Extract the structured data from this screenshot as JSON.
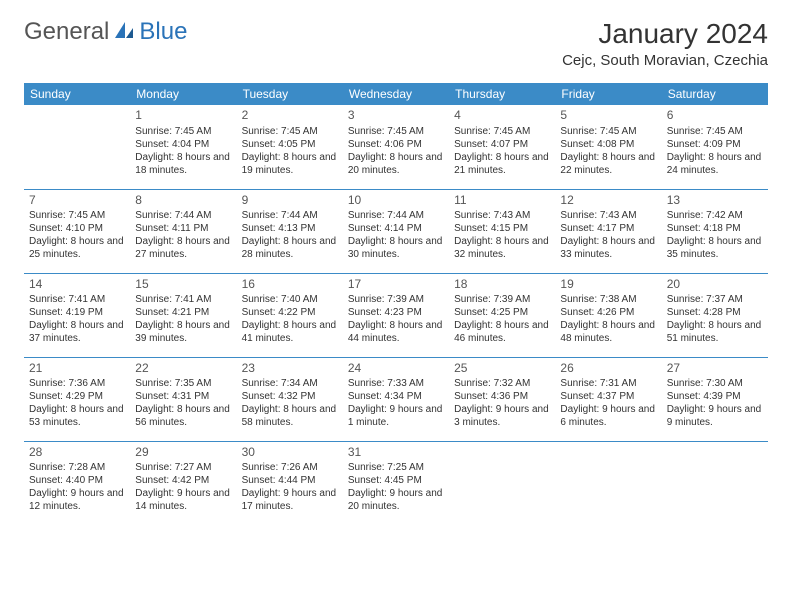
{
  "logo": {
    "text_general": "General",
    "text_blue": "Blue"
  },
  "title": "January 2024",
  "location": "Cejc, South Moravian, Czechia",
  "colors": {
    "header_bg": "#3b8bc7",
    "header_text": "#ffffff",
    "divider": "#3b8bc7",
    "brand_blue": "#2a73b8",
    "text": "#333333"
  },
  "day_headers": [
    "Sunday",
    "Monday",
    "Tuesday",
    "Wednesday",
    "Thursday",
    "Friday",
    "Saturday"
  ],
  "weeks": [
    [
      null,
      {
        "n": "1",
        "sr": "Sunrise: 7:45 AM",
        "ss": "Sunset: 4:04 PM",
        "dl": "Daylight: 8 hours and 18 minutes."
      },
      {
        "n": "2",
        "sr": "Sunrise: 7:45 AM",
        "ss": "Sunset: 4:05 PM",
        "dl": "Daylight: 8 hours and 19 minutes."
      },
      {
        "n": "3",
        "sr": "Sunrise: 7:45 AM",
        "ss": "Sunset: 4:06 PM",
        "dl": "Daylight: 8 hours and 20 minutes."
      },
      {
        "n": "4",
        "sr": "Sunrise: 7:45 AM",
        "ss": "Sunset: 4:07 PM",
        "dl": "Daylight: 8 hours and 21 minutes."
      },
      {
        "n": "5",
        "sr": "Sunrise: 7:45 AM",
        "ss": "Sunset: 4:08 PM",
        "dl": "Daylight: 8 hours and 22 minutes."
      },
      {
        "n": "6",
        "sr": "Sunrise: 7:45 AM",
        "ss": "Sunset: 4:09 PM",
        "dl": "Daylight: 8 hours and 24 minutes."
      }
    ],
    [
      {
        "n": "7",
        "sr": "Sunrise: 7:45 AM",
        "ss": "Sunset: 4:10 PM",
        "dl": "Daylight: 8 hours and 25 minutes."
      },
      {
        "n": "8",
        "sr": "Sunrise: 7:44 AM",
        "ss": "Sunset: 4:11 PM",
        "dl": "Daylight: 8 hours and 27 minutes."
      },
      {
        "n": "9",
        "sr": "Sunrise: 7:44 AM",
        "ss": "Sunset: 4:13 PM",
        "dl": "Daylight: 8 hours and 28 minutes."
      },
      {
        "n": "10",
        "sr": "Sunrise: 7:44 AM",
        "ss": "Sunset: 4:14 PM",
        "dl": "Daylight: 8 hours and 30 minutes."
      },
      {
        "n": "11",
        "sr": "Sunrise: 7:43 AM",
        "ss": "Sunset: 4:15 PM",
        "dl": "Daylight: 8 hours and 32 minutes."
      },
      {
        "n": "12",
        "sr": "Sunrise: 7:43 AM",
        "ss": "Sunset: 4:17 PM",
        "dl": "Daylight: 8 hours and 33 minutes."
      },
      {
        "n": "13",
        "sr": "Sunrise: 7:42 AM",
        "ss": "Sunset: 4:18 PM",
        "dl": "Daylight: 8 hours and 35 minutes."
      }
    ],
    [
      {
        "n": "14",
        "sr": "Sunrise: 7:41 AM",
        "ss": "Sunset: 4:19 PM",
        "dl": "Daylight: 8 hours and 37 minutes."
      },
      {
        "n": "15",
        "sr": "Sunrise: 7:41 AM",
        "ss": "Sunset: 4:21 PM",
        "dl": "Daylight: 8 hours and 39 minutes."
      },
      {
        "n": "16",
        "sr": "Sunrise: 7:40 AM",
        "ss": "Sunset: 4:22 PM",
        "dl": "Daylight: 8 hours and 41 minutes."
      },
      {
        "n": "17",
        "sr": "Sunrise: 7:39 AM",
        "ss": "Sunset: 4:23 PM",
        "dl": "Daylight: 8 hours and 44 minutes."
      },
      {
        "n": "18",
        "sr": "Sunrise: 7:39 AM",
        "ss": "Sunset: 4:25 PM",
        "dl": "Daylight: 8 hours and 46 minutes."
      },
      {
        "n": "19",
        "sr": "Sunrise: 7:38 AM",
        "ss": "Sunset: 4:26 PM",
        "dl": "Daylight: 8 hours and 48 minutes."
      },
      {
        "n": "20",
        "sr": "Sunrise: 7:37 AM",
        "ss": "Sunset: 4:28 PM",
        "dl": "Daylight: 8 hours and 51 minutes."
      }
    ],
    [
      {
        "n": "21",
        "sr": "Sunrise: 7:36 AM",
        "ss": "Sunset: 4:29 PM",
        "dl": "Daylight: 8 hours and 53 minutes."
      },
      {
        "n": "22",
        "sr": "Sunrise: 7:35 AM",
        "ss": "Sunset: 4:31 PM",
        "dl": "Daylight: 8 hours and 56 minutes."
      },
      {
        "n": "23",
        "sr": "Sunrise: 7:34 AM",
        "ss": "Sunset: 4:32 PM",
        "dl": "Daylight: 8 hours and 58 minutes."
      },
      {
        "n": "24",
        "sr": "Sunrise: 7:33 AM",
        "ss": "Sunset: 4:34 PM",
        "dl": "Daylight: 9 hours and 1 minute."
      },
      {
        "n": "25",
        "sr": "Sunrise: 7:32 AM",
        "ss": "Sunset: 4:36 PM",
        "dl": "Daylight: 9 hours and 3 minutes."
      },
      {
        "n": "26",
        "sr": "Sunrise: 7:31 AM",
        "ss": "Sunset: 4:37 PM",
        "dl": "Daylight: 9 hours and 6 minutes."
      },
      {
        "n": "27",
        "sr": "Sunrise: 7:30 AM",
        "ss": "Sunset: 4:39 PM",
        "dl": "Daylight: 9 hours and 9 minutes."
      }
    ],
    [
      {
        "n": "28",
        "sr": "Sunrise: 7:28 AM",
        "ss": "Sunset: 4:40 PM",
        "dl": "Daylight: 9 hours and 12 minutes."
      },
      {
        "n": "29",
        "sr": "Sunrise: 7:27 AM",
        "ss": "Sunset: 4:42 PM",
        "dl": "Daylight: 9 hours and 14 minutes."
      },
      {
        "n": "30",
        "sr": "Sunrise: 7:26 AM",
        "ss": "Sunset: 4:44 PM",
        "dl": "Daylight: 9 hours and 17 minutes."
      },
      {
        "n": "31",
        "sr": "Sunrise: 7:25 AM",
        "ss": "Sunset: 4:45 PM",
        "dl": "Daylight: 9 hours and 20 minutes."
      },
      null,
      null,
      null
    ]
  ]
}
